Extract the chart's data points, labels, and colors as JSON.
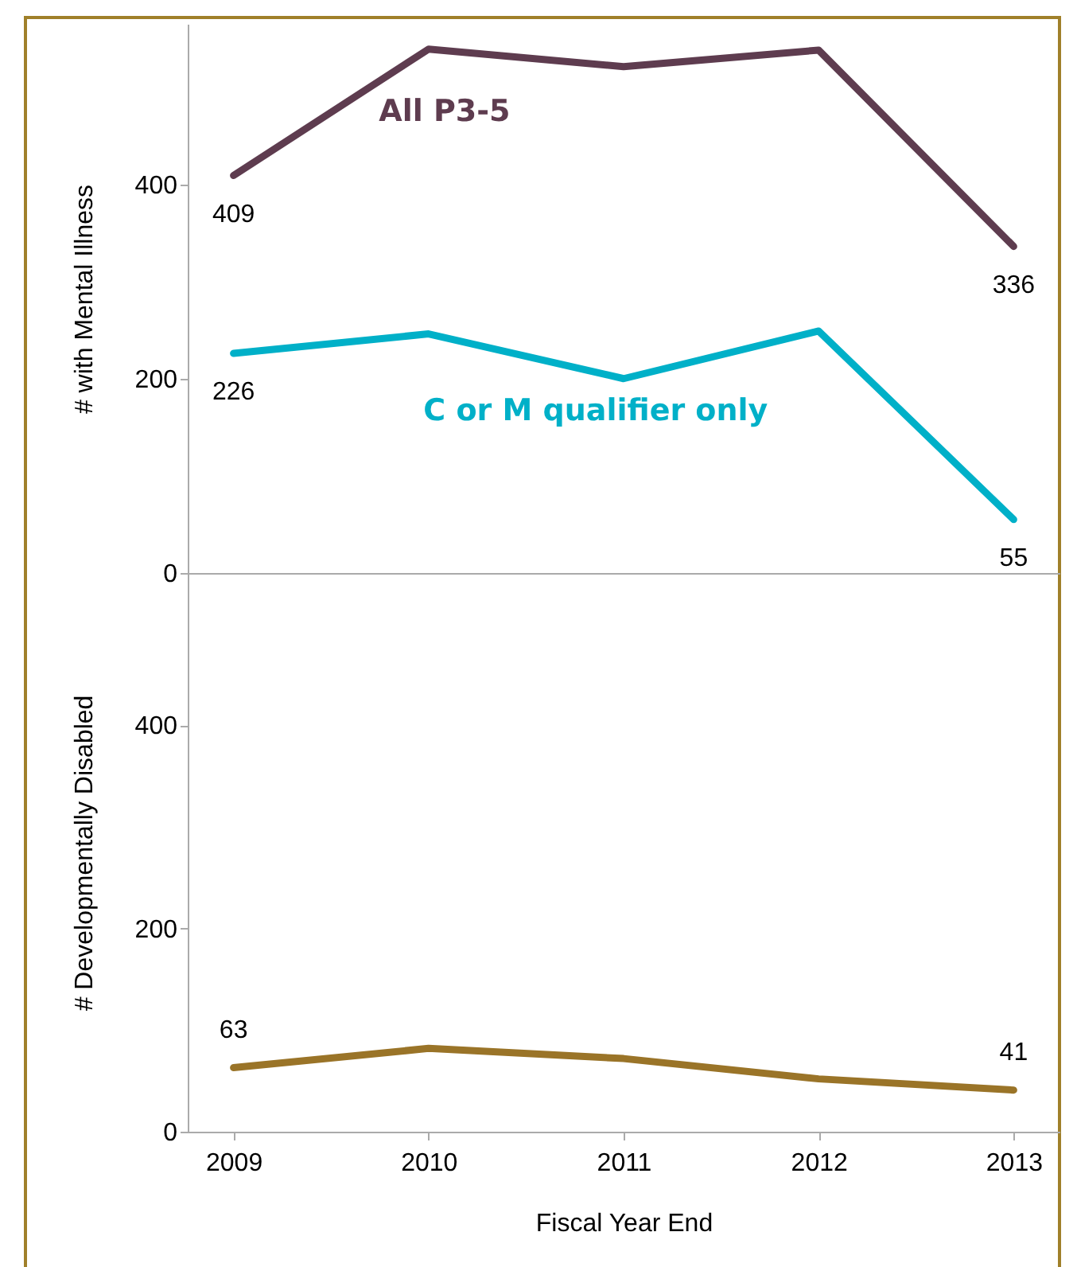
{
  "chart_data": [
    {
      "type": "line",
      "ylabel": "# with Mental Illness",
      "categories": [
        "2009",
        "2010",
        "2011",
        "2012",
        "2013"
      ],
      "ylim": [
        0,
        565
      ],
      "yticks": [
        0,
        200,
        400
      ],
      "tick_labels": "y",
      "series": [
        {
          "name": "All P3-5",
          "color": "#5e3c4f",
          "values": [
            409,
            539,
            521,
            538,
            336
          ],
          "value_labels": [
            "409",
            null,
            null,
            null,
            "336"
          ]
        },
        {
          "name": "C or M qualifier only",
          "color": "#00b0c8",
          "values": [
            226,
            246,
            200,
            249,
            55
          ],
          "value_labels": [
            "226",
            null,
            null,
            null,
            "55"
          ]
        }
      ]
    },
    {
      "type": "line",
      "xlabel": "Fiscal Year End",
      "ylabel": "# Developmentally Disabled",
      "categories": [
        "2009",
        "2010",
        "2011",
        "2012",
        "2013"
      ],
      "ylim": [
        0,
        550
      ],
      "yticks": [
        0,
        200,
        400
      ],
      "series": [
        {
          "color": "#9a7428",
          "values": [
            63,
            82,
            72,
            52,
            41
          ],
          "value_labels": [
            "63",
            null,
            null,
            null,
            "41"
          ]
        }
      ]
    }
  ]
}
